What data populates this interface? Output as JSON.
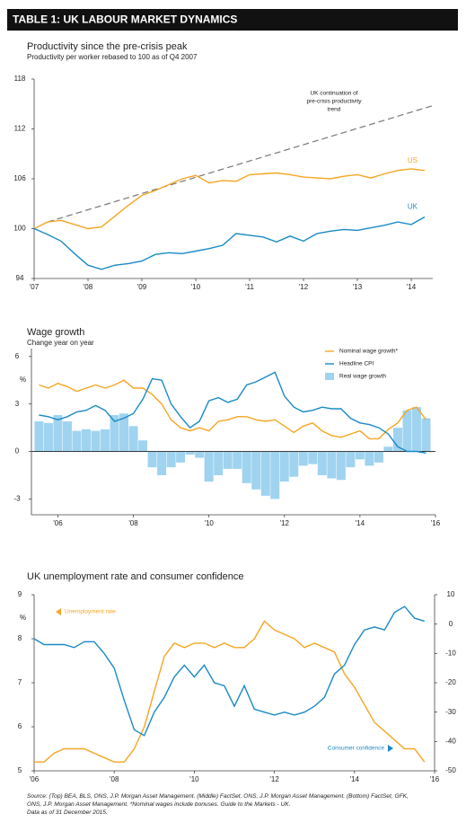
{
  "title": "TABLE 1: UK LABOUR MARKET DYNAMICS",
  "chart_data": [
    {
      "type": "line",
      "title": "Productivity since the pre-crisis peak",
      "subtitle": "Productivity per worker rebased to 100 as of Q4 2007",
      "x": [
        2007,
        2007.25,
        2007.5,
        2007.75,
        2008,
        2008.25,
        2008.5,
        2008.75,
        2009,
        2009.25,
        2009.5,
        2009.75,
        2010,
        2010.25,
        2010.5,
        2010.75,
        2011,
        2011.25,
        2011.5,
        2011.75,
        2012,
        2012.25,
        2012.5,
        2012.75,
        2013,
        2013.25,
        2013.5,
        2013.75,
        2014,
        2014.25
      ],
      "xlim": [
        2007,
        2014.4
      ],
      "xticks": [
        {
          "value": 2007,
          "label": "'07"
        },
        {
          "value": 2008,
          "label": "'08"
        },
        {
          "value": 2009,
          "label": "'09"
        },
        {
          "value": 2010,
          "label": "'10"
        },
        {
          "value": 2011,
          "label": "'11"
        },
        {
          "value": 2012,
          "label": "'12"
        },
        {
          "value": 2013,
          "label": "'13"
        },
        {
          "value": 2014,
          "label": "'14"
        }
      ],
      "ylim": [
        94,
        118
      ],
      "yticks": [
        94,
        100,
        106,
        112,
        118
      ],
      "series": [
        {
          "name": "US",
          "color": "#f5a623",
          "values": [
            100,
            100.8,
            101,
            100.5,
            100,
            100.2,
            101.5,
            102.8,
            104,
            104.6,
            105.3,
            106,
            106.4,
            105.5,
            105.8,
            105.7,
            106.5,
            106.6,
            106.7,
            106.5,
            106.2,
            106.1,
            106,
            106.3,
            106.5,
            106.1,
            106.6,
            107,
            107.2,
            107
          ]
        },
        {
          "name": "UK",
          "color": "#1a8ac6",
          "values": [
            100,
            99.3,
            98.5,
            97,
            95.6,
            95.1,
            95.6,
            95.8,
            96.1,
            96.9,
            97.1,
            97,
            97.3,
            97.6,
            98,
            99.4,
            99.2,
            99,
            98.4,
            99.1,
            98.5,
            99.4,
            99.7,
            99.9,
            99.8,
            100.1,
            100.4,
            100.8,
            100.5,
            101.4
          ]
        }
      ],
      "trend": {
        "label_lines": [
          "UK continuation of",
          "pre-crisis productivity",
          "trend"
        ],
        "color": "#777777",
        "x": [
          2007.25,
          2014.4
        ],
        "values": [
          100.8,
          114.8
        ]
      }
    },
    {
      "type": "combo",
      "title": "Wage growth",
      "subtitle": "Change year on year",
      "y_unit": "%",
      "x": [
        2005.5,
        2005.75,
        2006,
        2006.25,
        2006.5,
        2006.75,
        2007,
        2007.25,
        2007.5,
        2007.75,
        2008,
        2008.25,
        2008.5,
        2008.75,
        2009,
        2009.25,
        2009.5,
        2009.75,
        2010,
        2010.25,
        2010.5,
        2010.75,
        2011,
        2011.25,
        2011.5,
        2011.75,
        2012,
        2012.25,
        2012.5,
        2012.75,
        2013,
        2013.25,
        2013.5,
        2013.75,
        2014,
        2014.25,
        2014.5,
        2014.75,
        2015,
        2015.25,
        2015.5,
        2015.75
      ],
      "xlim": [
        2005.3,
        2016
      ],
      "xticks": [
        {
          "value": 2006,
          "label": "'06"
        },
        {
          "value": 2008,
          "label": "'08"
        },
        {
          "value": 2010,
          "label": "'10"
        },
        {
          "value": 2012,
          "label": "'12"
        },
        {
          "value": 2014,
          "label": "'14"
        },
        {
          "value": 2016,
          "label": "'16"
        }
      ],
      "ylim": [
        -4,
        6.5
      ],
      "yticks": [
        -3,
        0,
        3,
        6
      ],
      "legend": "top-right",
      "series": [
        {
          "name": "Nominal wage growth*",
          "kind": "line",
          "color": "#f5a623",
          "values": [
            4.2,
            4.0,
            4.3,
            4.1,
            3.8,
            4.0,
            4.2,
            4.0,
            4.2,
            4.5,
            4.0,
            4.0,
            3.6,
            3.0,
            2.0,
            1.5,
            1.3,
            1.5,
            1.3,
            1.9,
            2.0,
            2.2,
            2.2,
            2.0,
            1.9,
            2.0,
            1.6,
            1.2,
            1.6,
            1.8,
            1.3,
            1.0,
            0.9,
            1.1,
            1.3,
            0.8,
            0.8,
            1.4,
            1.8,
            2.6,
            2.8,
            2.0
          ]
        },
        {
          "name": "Headline CPI",
          "kind": "line",
          "color": "#1a8ac6",
          "values": [
            2.3,
            2.2,
            2.0,
            2.2,
            2.5,
            2.6,
            2.9,
            2.6,
            1.9,
            2.1,
            2.4,
            3.3,
            4.6,
            4.5,
            3.0,
            2.2,
            1.5,
            1.9,
            3.2,
            3.4,
            3.1,
            3.3,
            4.2,
            4.4,
            4.7,
            5.0,
            3.5,
            2.8,
            2.5,
            2.6,
            2.8,
            2.7,
            2.7,
            2.1,
            1.8,
            1.7,
            1.5,
            1.1,
            0.3,
            0.0,
            0.0,
            -0.1
          ]
        },
        {
          "name": "Real wage growth",
          "kind": "bar",
          "color": "#9fd3ef",
          "values": [
            1.9,
            1.8,
            2.3,
            1.9,
            1.3,
            1.4,
            1.3,
            1.4,
            2.3,
            2.4,
            1.6,
            0.7,
            -1.0,
            -1.5,
            -1.0,
            -0.7,
            -0.2,
            -0.4,
            -1.9,
            -1.5,
            -1.1,
            -1.1,
            -2.0,
            -2.4,
            -2.8,
            -3.0,
            -1.9,
            -1.6,
            -0.9,
            -0.8,
            -1.5,
            -1.7,
            -1.8,
            -1.0,
            -0.5,
            -0.9,
            -0.7,
            0.3,
            1.5,
            2.6,
            2.8,
            2.1
          ]
        }
      ]
    },
    {
      "type": "line",
      "title": "UK unemployment rate and consumer confidence",
      "y_unit": "%",
      "x": [
        2006,
        2006.25,
        2006.5,
        2006.75,
        2007,
        2007.25,
        2007.5,
        2007.75,
        2008,
        2008.25,
        2008.5,
        2008.75,
        2009,
        2009.25,
        2009.5,
        2009.75,
        2010,
        2010.25,
        2010.5,
        2010.75,
        2011,
        2011.25,
        2011.5,
        2011.75,
        2012,
        2012.25,
        2012.5,
        2012.75,
        2013,
        2013.25,
        2013.5,
        2013.75,
        2014,
        2014.25,
        2014.5,
        2014.75,
        2015,
        2015.25,
        2015.5,
        2015.75
      ],
      "xlim": [
        2006,
        2016
      ],
      "xticks": [
        {
          "value": 2006,
          "label": "'06"
        },
        {
          "value": 2008,
          "label": "'08"
        },
        {
          "value": 2010,
          "label": "'10"
        },
        {
          "value": 2012,
          "label": "'12"
        },
        {
          "value": 2014,
          "label": "'14"
        },
        {
          "value": 2016,
          "label": "'16"
        }
      ],
      "ylim": [
        5,
        9
      ],
      "yticks": [
        5,
        6,
        7,
        8,
        9
      ],
      "y2lim": [
        -50,
        10
      ],
      "y2ticks": [
        -50,
        -40,
        -30,
        -20,
        -10,
        0,
        10
      ],
      "series": [
        {
          "name": "Unemployment rate",
          "color": "#f5a623",
          "values": [
            5.2,
            5.2,
            5.4,
            5.5,
            5.5,
            5.5,
            5.4,
            5.3,
            5.2,
            5.2,
            5.5,
            6.0,
            6.8,
            7.6,
            7.9,
            7.8,
            7.9,
            7.9,
            7.8,
            7.9,
            7.8,
            7.8,
            8.0,
            8.4,
            8.2,
            8.1,
            8.0,
            7.8,
            7.9,
            7.8,
            7.7,
            7.2,
            6.9,
            6.5,
            6.1,
            5.9,
            5.7,
            5.5,
            5.5,
            5.2
          ]
        },
        {
          "name": "Consumer confidence",
          "color": "#1a8ac6",
          "axis": "y2",
          "values": [
            -5,
            -7,
            -7,
            -7,
            -8,
            -6,
            -6,
            -10,
            -15,
            -26,
            -36,
            -38,
            -30,
            -25,
            -18,
            -14,
            -18,
            -14,
            -20,
            -21,
            -28,
            -21,
            -29,
            -30,
            -31,
            -30,
            -31,
            -30,
            -28,
            -25,
            -17,
            -14,
            -7,
            -2,
            -1,
            -2,
            4,
            6,
            2,
            1
          ]
        }
      ]
    }
  ],
  "source_lines": [
    "Source: (Top) BEA, BLS, ONS, J.P. Morgan Asset Management. (Middle) FactSet, ONS, J.P. Morgan Asset Management. (Bottom) FactSet, GFK,",
    "ONS, J.P. Morgan Asset Management. *Nominal wages include bonuses. Guide to the Markets - UK.",
    "Data as of 31 December 2015."
  ]
}
